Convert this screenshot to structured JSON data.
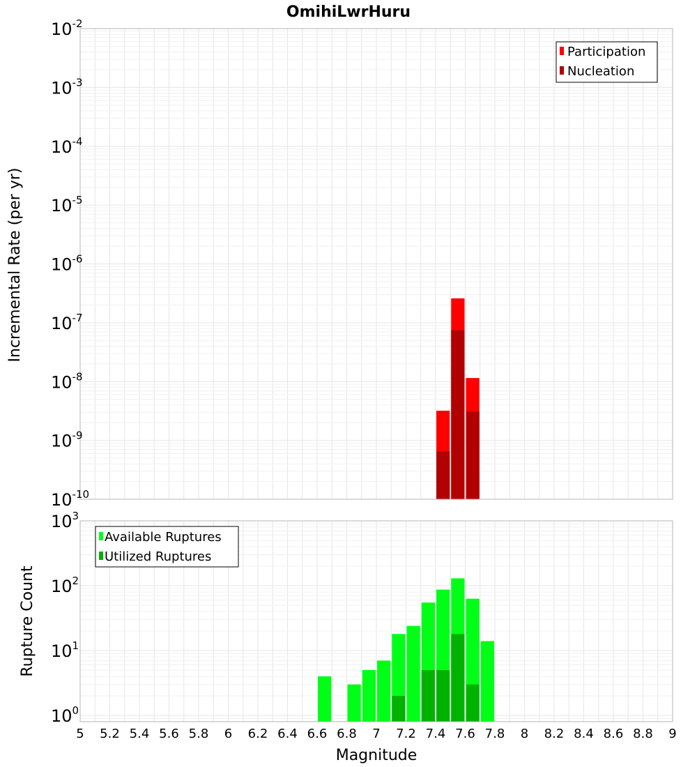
{
  "chart_data": [
    {
      "type": "bar",
      "title": "OmihiLwrHuru",
      "xlabel": "",
      "ylabel": "Incremental Rate (per yr)",
      "xlim": [
        5,
        9
      ],
      "ylim": [
        1e-10,
        0.01
      ],
      "yscale": "log",
      "grid": true,
      "legend_position": "top-right",
      "x_ticks": [
        "5",
        "5.2",
        "5.4",
        "5.6",
        "5.8",
        "6",
        "6.2",
        "6.4",
        "6.6",
        "6.8",
        "7",
        "7.2",
        "7.4",
        "7.6",
        "7.8",
        "8",
        "8.2",
        "8.4",
        "8.6",
        "8.8",
        "9"
      ],
      "y_ticks": [
        {
          "base": "10",
          "exp": "-10"
        },
        {
          "base": "10",
          "exp": "-9"
        },
        {
          "base": "10",
          "exp": "-8"
        },
        {
          "base": "10",
          "exp": "-7"
        },
        {
          "base": "10",
          "exp": "-6"
        },
        {
          "base": "10",
          "exp": "-5"
        },
        {
          "base": "10",
          "exp": "-4"
        },
        {
          "base": "10",
          "exp": "-3"
        },
        {
          "base": "10",
          "exp": "-2"
        }
      ],
      "series": [
        {
          "name": "Participation",
          "color": "#ff0000",
          "x": [
            7.45,
            7.55,
            7.65
          ],
          "values": [
            3.2e-09,
            2.6e-07,
            1.15e-08
          ]
        },
        {
          "name": "Nucleation",
          "color": "#b20000",
          "x": [
            7.45,
            7.55,
            7.65
          ],
          "values": [
            6.5e-10,
            7.5e-08,
            3.1e-09
          ]
        }
      ]
    },
    {
      "type": "bar",
      "xlabel": "Magnitude",
      "ylabel": "Rupture Count",
      "xlim": [
        5,
        9
      ],
      "ylim": [
        0.8,
        1000
      ],
      "yscale": "log",
      "grid": true,
      "legend_position": "top-left",
      "y_ticks": [
        {
          "base": "10",
          "exp": "0"
        },
        {
          "base": "10",
          "exp": "1"
        },
        {
          "base": "10",
          "exp": "2"
        },
        {
          "base": "10",
          "exp": "3"
        }
      ],
      "series": [
        {
          "name": "Available Ruptures",
          "color": "#00ff16",
          "x": [
            6.65,
            6.85,
            6.95,
            7.05,
            7.15,
            7.25,
            7.35,
            7.45,
            7.55,
            7.65,
            7.75
          ],
          "values": [
            4,
            3,
            5,
            7,
            18,
            24,
            55,
            87,
            130,
            63,
            14
          ]
        },
        {
          "name": "Utilized Ruptures",
          "color": "#00b200",
          "x": [
            7.15,
            7.35,
            7.45,
            7.55,
            7.65
          ],
          "values": [
            2,
            5,
            5,
            18,
            3
          ]
        }
      ]
    }
  ]
}
